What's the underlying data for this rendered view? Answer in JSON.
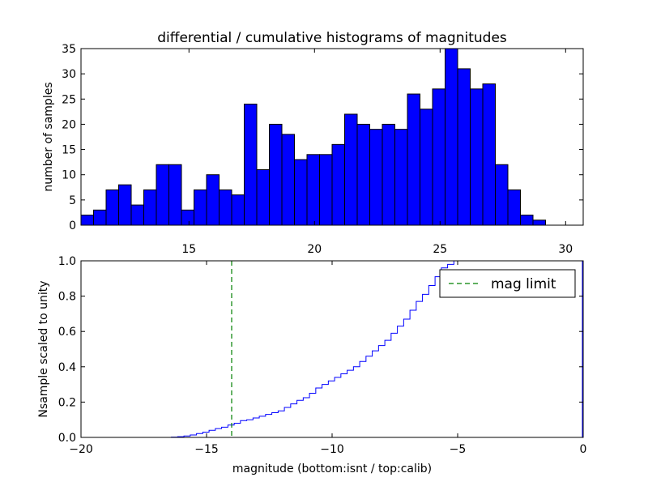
{
  "chart_data": [
    {
      "type": "bar",
      "title": "differential / cumulative histograms of magnitudes",
      "ylabel": "number of samples",
      "xlabel": "",
      "xlim": [
        10.7,
        30.7
      ],
      "ylim": [
        0,
        35
      ],
      "xticks": [
        15,
        20,
        25,
        30
      ],
      "yticks": [
        0,
        5,
        10,
        15,
        20,
        25,
        30,
        35
      ],
      "xtick_labels": [
        "15",
        "20",
        "25",
        "30"
      ],
      "ytick_labels": [
        "0",
        "5",
        "10",
        "15",
        "20",
        "25",
        "30",
        "35"
      ],
      "bin_start": 10.7,
      "bin_width": 0.5,
      "values": [
        2,
        3,
        7,
        8,
        4,
        7,
        12,
        12,
        3,
        7,
        10,
        7,
        6,
        24,
        11,
        20,
        18,
        13,
        14,
        14,
        16,
        22,
        20,
        19,
        20,
        19,
        26,
        23,
        27,
        35,
        31,
        27,
        28,
        12,
        7,
        2,
        1,
        0,
        0,
        0
      ],
      "color": "#0000ff",
      "grid": false
    },
    {
      "type": "line",
      "ylabel": "Nsample scaled to unity",
      "xlabel": "magnitude (bottom:isnt / top:calib)",
      "xlim": [
        -20,
        0
      ],
      "ylim": [
        0,
        1
      ],
      "xticks": [
        -20,
        -15,
        -10,
        -5,
        0
      ],
      "yticks": [
        0,
        0.2,
        0.4,
        0.6,
        0.8,
        1.0
      ],
      "xtick_labels": [
        "−20",
        "−15",
        "−10",
        "−5",
        "0"
      ],
      "ytick_labels": [
        "0.0",
        "0.2",
        "0.4",
        "0.6",
        "0.8",
        "1.0"
      ],
      "series": [
        {
          "step_start": -16.4,
          "step_width": 0.25,
          "values": [
            0.002,
            0.004,
            0.008,
            0.014,
            0.022,
            0.03,
            0.04,
            0.05,
            0.058,
            0.07,
            0.08,
            0.095,
            0.1,
            0.11,
            0.12,
            0.13,
            0.14,
            0.15,
            0.17,
            0.19,
            0.21,
            0.225,
            0.25,
            0.28,
            0.3,
            0.32,
            0.34,
            0.36,
            0.38,
            0.4,
            0.43,
            0.46,
            0.49,
            0.52,
            0.55,
            0.59,
            0.63,
            0.67,
            0.72,
            0.77,
            0.81,
            0.86,
            0.91,
            0.96,
            0.98,
            1.0
          ],
          "color": "#0000ff"
        }
      ],
      "vline": {
        "x": -14,
        "color": "#008000",
        "label": "mag limit"
      },
      "legend": {
        "placement": "upper-right",
        "label": "mag limit"
      },
      "grid": false
    }
  ]
}
